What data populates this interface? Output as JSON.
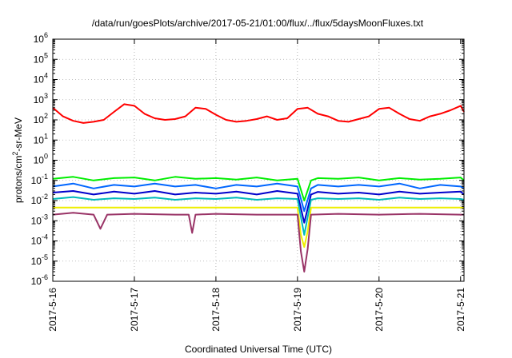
{
  "chart_data": {
    "type": "line",
    "title": "/data/run/goesPlots/archive/2017-05-21/01:00/flux/../flux/5daysMoonFluxes.txt",
    "xlabel": "Coordinated Universal Time (UTC)",
    "ylabel": {
      "prefix": "protons/cm",
      "sup": "2",
      "suffix": "-sr-MeV"
    },
    "xlim": [
      "2017-05-16T00:00",
      "2017-05-21T01:00"
    ],
    "x_ticks": [
      "2017-5-16",
      "2017-5-17",
      "2017-5-18",
      "2017-5-19",
      "2017-5-20",
      "2017-5-21"
    ],
    "ylim": [
      1e-06,
      1000000
    ],
    "y_scale": "log",
    "y_ticks": [
      {
        "base": "10",
        "exp": "-6"
      },
      {
        "base": "10",
        "exp": "-5"
      },
      {
        "base": "10",
        "exp": "-4"
      },
      {
        "base": "10",
        "exp": "-3"
      },
      {
        "base": "10",
        "exp": "-2"
      },
      {
        "base": "10",
        "exp": "-1"
      },
      {
        "base": "10",
        "exp": "0"
      },
      {
        "base": "10",
        "exp": "1"
      },
      {
        "base": "10",
        "exp": "2"
      },
      {
        "base": "10",
        "exp": "3"
      },
      {
        "base": "10",
        "exp": "4"
      },
      {
        "base": "10",
        "exp": "5"
      },
      {
        "base": "10",
        "exp": "6"
      }
    ],
    "grid": true,
    "series": [
      {
        "color": "#ff0000",
        "width": 2,
        "x": [
          "2017-05-16T00:00",
          "2017-05-16T03:00",
          "2017-05-16T06:00",
          "2017-05-16T09:00",
          "2017-05-16T12:00",
          "2017-05-16T15:00",
          "2017-05-16T18:00",
          "2017-05-16T21:00",
          "2017-05-17T00:00",
          "2017-05-17T03:00",
          "2017-05-17T06:00",
          "2017-05-17T09:00",
          "2017-05-17T12:00",
          "2017-05-17T15:00",
          "2017-05-17T18:00",
          "2017-05-17T21:00",
          "2017-05-18T00:00",
          "2017-05-18T03:00",
          "2017-05-18T06:00",
          "2017-05-18T09:00",
          "2017-05-18T12:00",
          "2017-05-18T15:00",
          "2017-05-18T18:00",
          "2017-05-18T21:00",
          "2017-05-19T00:00",
          "2017-05-19T03:00",
          "2017-05-19T06:00",
          "2017-05-19T09:00",
          "2017-05-19T12:00",
          "2017-05-19T15:00",
          "2017-05-19T18:00",
          "2017-05-19T21:00",
          "2017-05-20T00:00",
          "2017-05-20T03:00",
          "2017-05-20T06:00",
          "2017-05-20T09:00",
          "2017-05-20T12:00",
          "2017-05-20T15:00",
          "2017-05-20T18:00",
          "2017-05-20T21:00",
          "2017-05-21T00:00",
          "2017-05-21T01:00"
        ],
        "y": [
          400,
          150,
          90,
          70,
          80,
          100,
          250,
          600,
          500,
          200,
          120,
          100,
          110,
          150,
          400,
          350,
          180,
          100,
          80,
          90,
          110,
          150,
          100,
          120,
          350,
          400,
          200,
          150,
          90,
          80,
          110,
          150,
          350,
          400,
          200,
          110,
          90,
          150,
          200,
          300,
          500,
          250
        ]
      },
      {
        "color": "#00ee00",
        "width": 2,
        "x": [
          "2017-05-16T00:00",
          "2017-05-16T06:00",
          "2017-05-16T12:00",
          "2017-05-16T18:00",
          "2017-05-17T00:00",
          "2017-05-17T06:00",
          "2017-05-17T12:00",
          "2017-05-17T18:00",
          "2017-05-18T00:00",
          "2017-05-18T06:00",
          "2017-05-18T12:00",
          "2017-05-18T18:00",
          "2017-05-19T00:00",
          "2017-05-19T02:00",
          "2017-05-19T04:00",
          "2017-05-19T06:00",
          "2017-05-19T12:00",
          "2017-05-19T18:00",
          "2017-05-20T00:00",
          "2017-05-20T06:00",
          "2017-05-20T12:00",
          "2017-05-20T18:00",
          "2017-05-21T00:00",
          "2017-05-21T01:00"
        ],
        "y": [
          0.12,
          0.15,
          0.1,
          0.13,
          0.14,
          0.1,
          0.15,
          0.12,
          0.13,
          0.11,
          0.14,
          0.1,
          0.12,
          0.01,
          0.1,
          0.13,
          0.12,
          0.14,
          0.1,
          0.13,
          0.11,
          0.12,
          0.14,
          0.1
        ]
      },
      {
        "color": "#0066ff",
        "width": 2,
        "x": [
          "2017-05-16T00:00",
          "2017-05-16T06:00",
          "2017-05-16T12:00",
          "2017-05-16T18:00",
          "2017-05-17T00:00",
          "2017-05-17T06:00",
          "2017-05-17T12:00",
          "2017-05-17T18:00",
          "2017-05-18T00:00",
          "2017-05-18T06:00",
          "2017-05-18T12:00",
          "2017-05-18T18:00",
          "2017-05-19T00:00",
          "2017-05-19T02:00",
          "2017-05-19T04:00",
          "2017-05-19T06:00",
          "2017-05-19T12:00",
          "2017-05-19T18:00",
          "2017-05-20T00:00",
          "2017-05-20T06:00",
          "2017-05-20T12:00",
          "2017-05-20T18:00",
          "2017-05-21T00:00",
          "2017-05-21T01:00"
        ],
        "y": [
          0.05,
          0.07,
          0.04,
          0.06,
          0.05,
          0.07,
          0.05,
          0.06,
          0.04,
          0.06,
          0.05,
          0.07,
          0.05,
          0.003,
          0.04,
          0.06,
          0.05,
          0.06,
          0.05,
          0.07,
          0.04,
          0.06,
          0.05,
          0.04
        ]
      },
      {
        "color": "#0000cc",
        "width": 2,
        "x": [
          "2017-05-16T00:00",
          "2017-05-16T06:00",
          "2017-05-16T12:00",
          "2017-05-16T18:00",
          "2017-05-17T00:00",
          "2017-05-17T06:00",
          "2017-05-17T12:00",
          "2017-05-17T18:00",
          "2017-05-18T00:00",
          "2017-05-18T06:00",
          "2017-05-18T12:00",
          "2017-05-18T18:00",
          "2017-05-19T00:00",
          "2017-05-19T02:00",
          "2017-05-19T04:00",
          "2017-05-19T06:00",
          "2017-05-19T12:00",
          "2017-05-19T18:00",
          "2017-05-20T00:00",
          "2017-05-20T06:00",
          "2017-05-20T12:00",
          "2017-05-20T18:00",
          "2017-05-21T00:00",
          "2017-05-21T01:00"
        ],
        "y": [
          0.025,
          0.03,
          0.02,
          0.028,
          0.022,
          0.03,
          0.02,
          0.025,
          0.022,
          0.028,
          0.02,
          0.03,
          0.022,
          0.0008,
          0.02,
          0.027,
          0.022,
          0.025,
          0.02,
          0.028,
          0.022,
          0.025,
          0.028,
          0.02
        ]
      },
      {
        "color": "#00bbbb",
        "width": 2,
        "x": [
          "2017-05-16T00:00",
          "2017-05-16T06:00",
          "2017-05-16T12:00",
          "2017-05-16T18:00",
          "2017-05-17T00:00",
          "2017-05-17T06:00",
          "2017-05-17T12:00",
          "2017-05-17T18:00",
          "2017-05-18T00:00",
          "2017-05-18T06:00",
          "2017-05-18T12:00",
          "2017-05-18T18:00",
          "2017-05-19T00:00",
          "2017-05-19T02:00",
          "2017-05-19T04:00",
          "2017-05-19T06:00",
          "2017-05-19T12:00",
          "2017-05-19T18:00",
          "2017-05-20T00:00",
          "2017-05-20T06:00",
          "2017-05-20T12:00",
          "2017-05-20T18:00",
          "2017-05-21T00:00",
          "2017-05-21T01:00"
        ],
        "y": [
          0.012,
          0.015,
          0.011,
          0.013,
          0.012,
          0.014,
          0.011,
          0.013,
          0.012,
          0.014,
          0.011,
          0.013,
          0.012,
          0.0002,
          0.011,
          0.013,
          0.012,
          0.013,
          0.011,
          0.014,
          0.012,
          0.013,
          0.012,
          0.011
        ]
      },
      {
        "color": "#eeee00",
        "width": 2,
        "x": [
          "2017-05-16T00:00",
          "2017-05-16T12:00",
          "2017-05-17T00:00",
          "2017-05-17T12:00",
          "2017-05-18T00:00",
          "2017-05-18T12:00",
          "2017-05-19T00:00",
          "2017-05-19T01:00",
          "2017-05-19T02:00",
          "2017-05-19T03:00",
          "2017-05-19T04:00",
          "2017-05-19T12:00",
          "2017-05-20T00:00",
          "2017-05-20T12:00",
          "2017-05-21T00:00",
          "2017-05-21T01:00"
        ],
        "y": [
          0.0045,
          0.0045,
          0.0045,
          0.0045,
          0.0045,
          0.0045,
          0.0045,
          0.0002,
          5e-05,
          0.0003,
          0.0045,
          0.0045,
          0.0045,
          0.0045,
          0.0045,
          0.0045
        ]
      },
      {
        "color": "#993366",
        "width": 2,
        "x": [
          "2017-05-16T00:00",
          "2017-05-16T06:00",
          "2017-05-16T12:00",
          "2017-05-16T14:00",
          "2017-05-16T16:00",
          "2017-05-17T00:00",
          "2017-05-17T12:00",
          "2017-05-17T16:00",
          "2017-05-17T17:00",
          "2017-05-17T18:00",
          "2017-05-18T00:00",
          "2017-05-18T12:00",
          "2017-05-19T00:00",
          "2017-05-19T01:00",
          "2017-05-19T02:00",
          "2017-05-19T03:00",
          "2017-05-19T04:00",
          "2017-05-19T12:00",
          "2017-05-20T00:00",
          "2017-05-20T12:00",
          "2017-05-21T00:00",
          "2017-05-21T01:00"
        ],
        "y": [
          0.002,
          0.0025,
          0.002,
          0.0004,
          0.002,
          0.0022,
          0.002,
          0.002,
          0.00025,
          0.002,
          0.0022,
          0.002,
          0.002,
          3e-05,
          3e-06,
          4e-05,
          0.002,
          0.0022,
          0.002,
          0.0022,
          0.002,
          0.002
        ]
      }
    ]
  }
}
